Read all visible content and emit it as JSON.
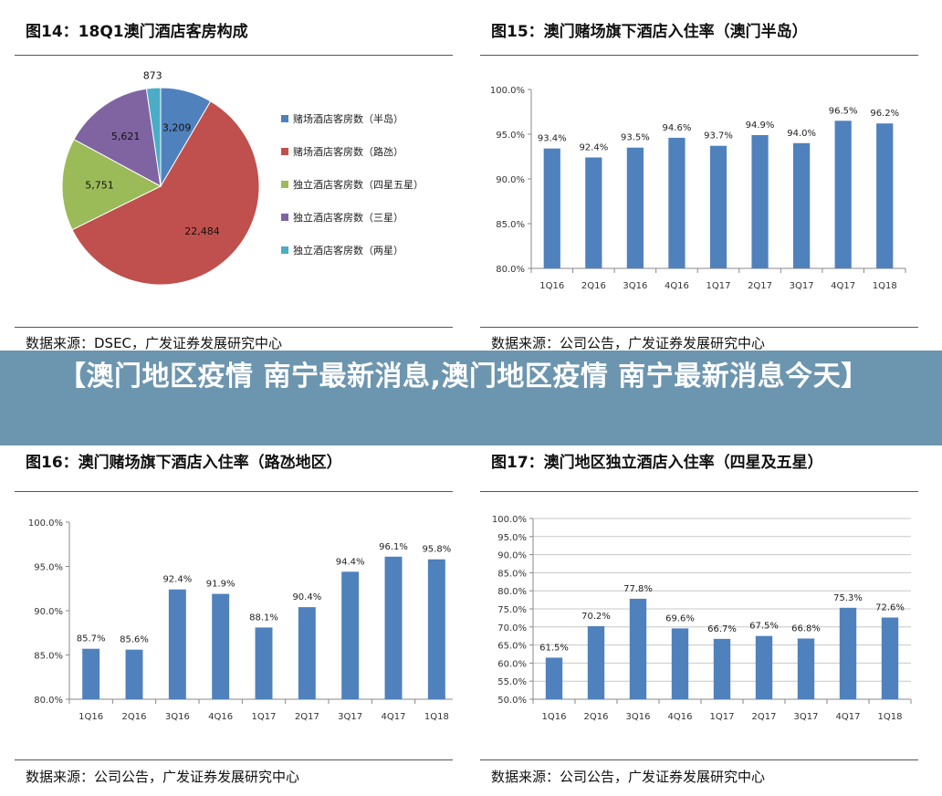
{
  "banner": {
    "text": "【澳门地区疫情 南宁最新消息,澳门地区疫情 南宁最新消息今天】"
  },
  "panels": [
    {
      "title": "图14：18Q1澳门酒店客房构成",
      "source": "数据来源：DSEC，广发证券发展研究中心"
    },
    {
      "title": "图15：澳门赌场旗下酒店入住率（澳门半岛）",
      "source": "数据来源：公司公告，广发证券发展研究中心"
    },
    {
      "title": "图16：澳门赌场旗下酒店入住率（路氹地区）",
      "source": "数据来源：公司公告，广发证券发展研究中心"
    },
    {
      "title": "图17：澳门地区独立酒店入住率（四星及五星）",
      "source": "数据来源：公司公告，广发证券发展研究中心"
    }
  ],
  "chart_data": [
    {
      "type": "pie",
      "title": "图14：18Q1澳门酒店客房构成",
      "slices": [
        {
          "name": "赌场酒店客房数（半岛）",
          "value": 3209,
          "label": "3,209",
          "color": "#4F81BD"
        },
        {
          "name": "赌场酒店客房数（路氹）",
          "value": 22484,
          "label": "22,484",
          "color": "#C0504D"
        },
        {
          "name": "独立酒店客房数（四星五星）",
          "value": 5751,
          "label": "5,751",
          "color": "#9BBB59"
        },
        {
          "name": "独立酒店客房数（三星）",
          "value": 5621,
          "label": "5,621",
          "color": "#8064A2"
        },
        {
          "name": "独立酒店客房数（两星）",
          "value": 873,
          "label": "873",
          "color": "#4BACC6"
        }
      ],
      "legend": "right"
    },
    {
      "type": "bar",
      "title": "图15：澳门赌场旗下酒店入住率（澳门半岛）",
      "categories": [
        "1Q16",
        "2Q16",
        "3Q16",
        "4Q16",
        "1Q17",
        "2Q17",
        "3Q17",
        "4Q17",
        "1Q18"
      ],
      "values": [
        93.4,
        92.4,
        93.5,
        94.6,
        93.7,
        94.9,
        94.0,
        96.5,
        96.2
      ],
      "value_labels": [
        "93.4%",
        "92.4%",
        "93.5%",
        "94.6%",
        "93.7%",
        "94.9%",
        "94.0%",
        "96.5%",
        "96.2%"
      ],
      "ylim": [
        80,
        100
      ],
      "yticks": [
        80,
        85,
        90,
        95,
        100
      ],
      "ytick_labels": [
        "80.0%",
        "85.0%",
        "90.0%",
        "95.0%",
        "100.0%"
      ],
      "color": "#4F81BD",
      "grid": false
    },
    {
      "type": "bar",
      "title": "图16：澳门赌场旗下酒店入住率（路氹地区）",
      "categories": [
        "1Q16",
        "2Q16",
        "3Q16",
        "4Q16",
        "1Q17",
        "2Q17",
        "3Q17",
        "4Q17",
        "1Q18"
      ],
      "values": [
        85.7,
        85.6,
        92.4,
        91.9,
        88.1,
        90.4,
        94.4,
        96.1,
        95.8
      ],
      "value_labels": [
        "85.7%",
        "85.6%",
        "92.4%",
        "91.9%",
        "88.1%",
        "90.4%",
        "94.4%",
        "96.1%",
        "95.8%"
      ],
      "ylim": [
        80,
        100
      ],
      "yticks": [
        80,
        85,
        90,
        95,
        100
      ],
      "ytick_labels": [
        "80.0%",
        "85.0%",
        "90.0%",
        "95.0%",
        "100.0%"
      ],
      "color": "#4F81BD",
      "grid": false
    },
    {
      "type": "bar",
      "title": "图17：澳门地区独立酒店入住率（四星及五星）",
      "categories": [
        "1Q16",
        "2Q16",
        "3Q16",
        "4Q16",
        "1Q17",
        "2Q17",
        "3Q17",
        "4Q17",
        "1Q18"
      ],
      "values": [
        61.5,
        70.2,
        77.8,
        69.6,
        66.7,
        67.5,
        66.8,
        75.3,
        72.6
      ],
      "value_labels": [
        "61.5%",
        "70.2%",
        "77.8%",
        "69.6%",
        "66.7%",
        "67.5%",
        "66.8%",
        "75.3%",
        "72.6%"
      ],
      "ylim": [
        50,
        100
      ],
      "yticks": [
        50,
        55,
        60,
        65,
        70,
        75,
        80,
        85,
        90,
        95,
        100
      ],
      "ytick_labels": [
        "50.0%",
        "55.0%",
        "60.0%",
        "65.0%",
        "70.0%",
        "75.0%",
        "80.0%",
        "85.0%",
        "90.0%",
        "95.0%",
        "100.0%"
      ],
      "color": "#4F81BD",
      "grid": true
    }
  ]
}
